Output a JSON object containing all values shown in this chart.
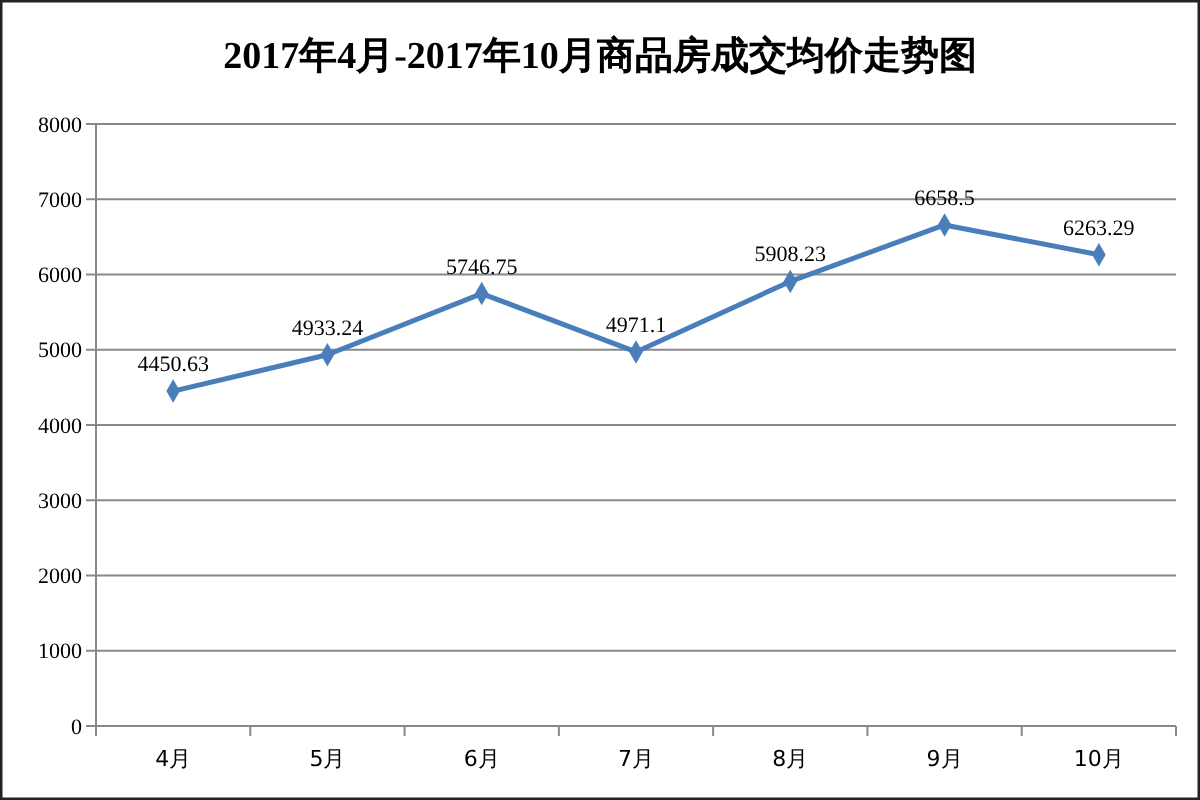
{
  "chart_data": {
    "type": "line",
    "title": "2017年4月-2017年10月商品房成交均价走势图",
    "categories": [
      "4月",
      "5月",
      "6月",
      "7月",
      "8月",
      "9月",
      "10月"
    ],
    "series": [
      {
        "color": "#4a7ebb",
        "values": [
          4450.63,
          4933.24,
          5746.75,
          4971.1,
          5908.23,
          6658.5,
          6263.29
        ]
      }
    ],
    "ylim": [
      0,
      8000
    ],
    "yticks": [
      0,
      1000,
      2000,
      3000,
      4000,
      5000,
      6000,
      7000,
      8000
    ],
    "grid": "y",
    "marker": "diamond",
    "line_style": "solid",
    "data_labels": true
  }
}
